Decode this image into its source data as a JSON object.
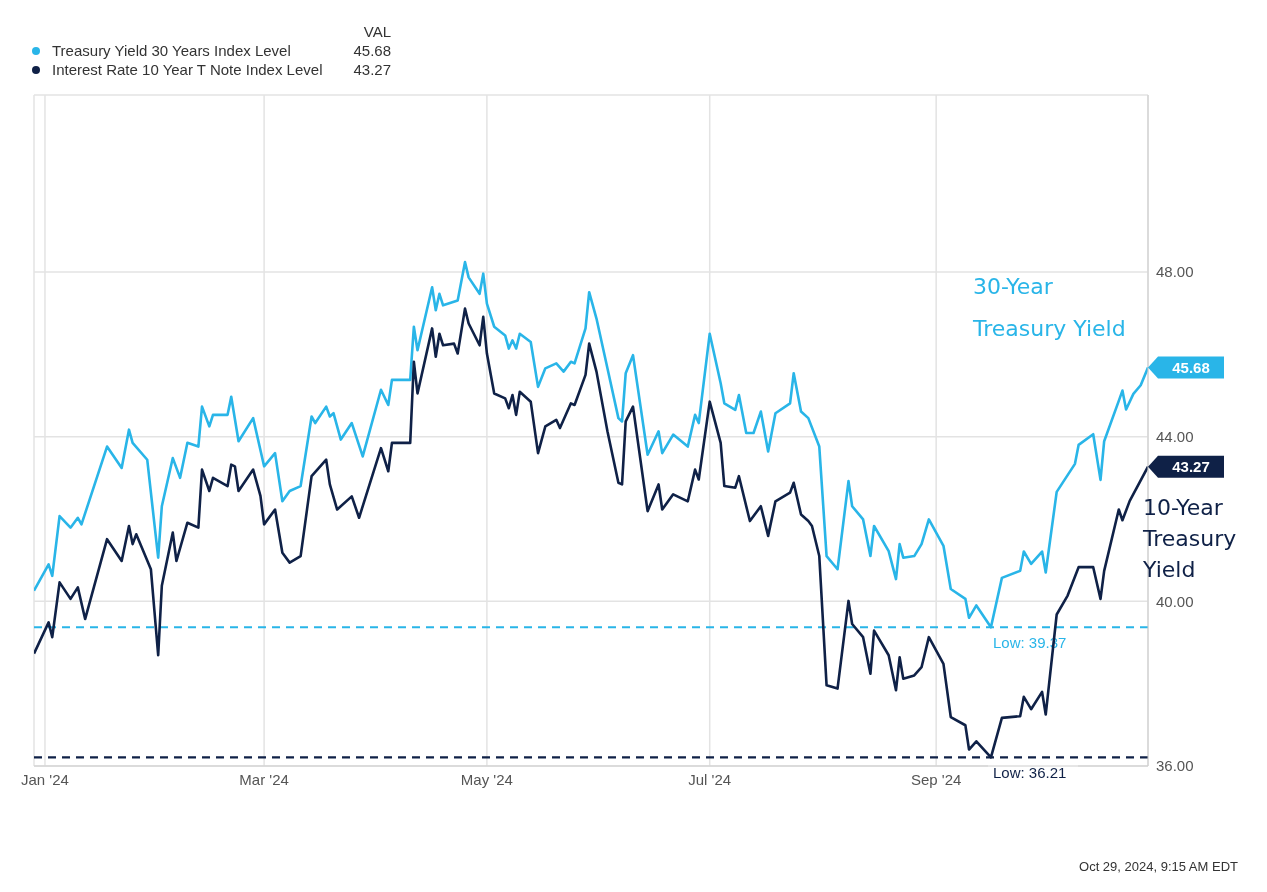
{
  "chart_data": {
    "type": "line",
    "legend_title": "VAL",
    "legend": "top left",
    "grid": true,
    "xlim": [
      "2023-12-29",
      "2024-10-29"
    ],
    "xticks": [
      {
        "value": "2024-01-01",
        "label": "Jan '24"
      },
      {
        "value": "2024-03-01",
        "label": "Mar '24"
      },
      {
        "value": "2024-05-01",
        "label": "May '24"
      },
      {
        "value": "2024-07-01",
        "label": "Jul '24"
      },
      {
        "value": "2024-09-01",
        "label": "Sep '24"
      }
    ],
    "ylim": [
      36,
      52.3
    ],
    "yticks": [
      {
        "value": 36,
        "label": "36.00"
      },
      {
        "value": 40,
        "label": "40.00"
      },
      {
        "value": 44,
        "label": "44.00"
      },
      {
        "value": 48,
        "label": "48.00"
      }
    ],
    "series": [
      {
        "name": "Treasury Yield 30 Years Index Level",
        "color": "#29b5e8",
        "x": [
          "2023-12-29",
          "2024-01-02",
          "2024-01-03",
          "2024-01-05",
          "2024-01-08",
          "2024-01-10",
          "2024-01-11",
          "2024-01-18",
          "2024-01-22",
          "2024-01-24",
          "2024-01-25",
          "2024-01-29",
          "2024-02-01",
          "2024-02-02",
          "2024-02-05",
          "2024-02-07",
          "2024-02-09",
          "2024-02-12",
          "2024-02-13",
          "2024-02-15",
          "2024-02-16",
          "2024-02-20",
          "2024-02-21",
          "2024-02-23",
          "2024-02-27",
          "2024-03-01",
          "2024-03-04",
          "2024-03-06",
          "2024-03-08",
          "2024-03-11",
          "2024-03-14",
          "2024-03-15",
          "2024-03-18",
          "2024-03-19",
          "2024-03-20",
          "2024-03-22",
          "2024-03-25",
          "2024-03-28",
          "2024-04-02",
          "2024-04-04",
          "2024-04-05",
          "2024-04-10",
          "2024-04-11",
          "2024-04-12",
          "2024-04-16",
          "2024-04-17",
          "2024-04-18",
          "2024-04-19",
          "2024-04-23",
          "2024-04-25",
          "2024-04-26",
          "2024-04-29",
          "2024-04-30",
          "2024-05-01",
          "2024-05-03",
          "2024-05-06",
          "2024-05-07",
          "2024-05-08",
          "2024-05-09",
          "2024-05-10",
          "2024-05-13",
          "2024-05-15",
          "2024-05-17",
          "2024-05-20",
          "2024-05-22",
          "2024-05-24",
          "2024-05-25",
          "2024-05-28",
          "2024-05-29",
          "2024-05-31",
          "2024-06-03",
          "2024-06-06",
          "2024-06-07",
          "2024-06-08",
          "2024-06-10",
          "2024-06-14",
          "2024-06-17",
          "2024-06-18",
          "2024-06-21",
          "2024-06-25",
          "2024-06-27",
          "2024-06-28",
          "2024-07-01",
          "2024-07-04",
          "2024-07-05",
          "2024-07-08",
          "2024-07-09",
          "2024-07-11",
          "2024-07-13",
          "2024-07-15",
          "2024-07-17",
          "2024-07-19",
          "2024-07-23",
          "2024-07-24",
          "2024-07-26",
          "2024-07-28",
          "2024-07-31",
          "2024-08-02",
          "2024-08-05",
          "2024-08-08",
          "2024-08-09",
          "2024-08-12",
          "2024-08-14",
          "2024-08-15",
          "2024-08-19",
          "2024-08-21",
          "2024-08-22",
          "2024-08-23",
          "2024-08-26",
          "2024-08-28",
          "2024-08-30",
          "2024-09-03",
          "2024-09-05",
          "2024-09-09",
          "2024-09-10",
          "2024-09-12",
          "2024-09-16",
          "2024-09-19",
          "2024-09-24",
          "2024-09-25",
          "2024-09-27",
          "2024-09-30",
          "2024-10-01",
          "2024-10-04",
          "2024-10-09",
          "2024-10-10",
          "2024-10-14",
          "2024-10-16",
          "2024-10-17",
          "2024-10-21",
          "2024-10-22",
          "2024-10-23",
          "2024-10-25",
          "2024-10-27",
          "2024-10-29"
        ],
        "values": [
          40.26,
          40.9,
          40.62,
          42.07,
          41.79,
          42.03,
          41.87,
          43.76,
          43.24,
          44.17,
          43.85,
          43.44,
          41.06,
          42.31,
          43.48,
          43.0,
          43.85,
          43.76,
          44.73,
          44.25,
          44.53,
          44.53,
          44.97,
          43.89,
          44.45,
          43.28,
          43.6,
          42.43,
          42.68,
          42.8,
          44.49,
          44.33,
          44.73,
          44.49,
          44.57,
          43.93,
          44.33,
          43.52,
          45.14,
          44.77,
          45.38,
          45.38,
          46.67,
          46.1,
          47.63,
          47.07,
          47.47,
          47.19,
          47.31,
          48.24,
          47.87,
          47.47,
          47.96,
          47.23,
          46.67,
          46.46,
          46.14,
          46.34,
          46.14,
          46.5,
          46.3,
          45.21,
          45.66,
          45.78,
          45.58,
          45.82,
          45.78,
          46.63,
          47.51,
          46.87,
          45.66,
          44.45,
          44.37,
          45.54,
          45.98,
          43.56,
          44.13,
          43.6,
          44.05,
          43.76,
          44.53,
          44.33,
          46.5,
          45.3,
          44.81,
          44.65,
          45.01,
          44.09,
          44.09,
          44.61,
          43.64,
          44.57,
          44.81,
          45.54,
          44.61,
          44.45,
          43.76,
          41.1,
          40.78,
          42.92,
          42.31,
          41.99,
          41.1,
          41.83,
          41.22,
          40.54,
          41.39,
          41.06,
          41.1,
          41.39,
          41.99,
          41.35,
          40.3,
          40.06,
          39.6,
          39.9,
          39.37,
          40.57,
          40.74,
          41.21,
          40.91,
          41.21,
          40.7,
          42.66,
          43.34,
          43.8,
          44.06,
          42.95,
          43.89,
          44.87,
          45.12,
          44.66,
          45.04,
          45.25,
          45.68
        ]
      },
      {
        "name": "Interest Rate 10 Year T Note Index Level",
        "color": "#0f2147",
        "x": [
          "2023-12-29",
          "2024-01-02",
          "2024-01-03",
          "2024-01-05",
          "2024-01-08",
          "2024-01-10",
          "2024-01-12",
          "2024-01-18",
          "2024-01-22",
          "2024-01-24",
          "2024-01-25",
          "2024-01-26",
          "2024-01-30",
          "2024-02-01",
          "2024-02-02",
          "2024-02-05",
          "2024-02-06",
          "2024-02-09",
          "2024-02-12",
          "2024-02-13",
          "2024-02-15",
          "2024-02-16",
          "2024-02-20",
          "2024-02-21",
          "2024-02-22",
          "2024-02-23",
          "2024-02-27",
          "2024-02-29",
          "2024-03-01",
          "2024-03-04",
          "2024-03-06",
          "2024-03-08",
          "2024-03-11",
          "2024-03-14",
          "2024-03-18",
          "2024-03-19",
          "2024-03-21",
          "2024-03-25",
          "2024-03-27",
          "2024-04-02",
          "2024-04-04",
          "2024-04-05",
          "2024-04-10",
          "2024-04-11",
          "2024-04-12",
          "2024-04-16",
          "2024-04-17",
          "2024-04-18",
          "2024-04-19",
          "2024-04-22",
          "2024-04-23",
          "2024-04-25",
          "2024-04-26",
          "2024-04-29",
          "2024-04-30",
          "2024-05-01",
          "2024-05-03",
          "2024-05-06",
          "2024-05-07",
          "2024-05-08",
          "2024-05-09",
          "2024-05-10",
          "2024-05-13",
          "2024-05-15",
          "2024-05-17",
          "2024-05-20",
          "2024-05-21",
          "2024-05-24",
          "2024-05-25",
          "2024-05-28",
          "2024-05-29",
          "2024-05-31",
          "2024-06-03",
          "2024-06-06",
          "2024-06-07",
          "2024-06-08",
          "2024-06-10",
          "2024-06-14",
          "2024-06-17",
          "2024-06-18",
          "2024-06-21",
          "2024-06-25",
          "2024-06-27",
          "2024-06-28",
          "2024-07-01",
          "2024-07-04",
          "2024-07-05",
          "2024-07-08",
          "2024-07-09",
          "2024-07-12",
          "2024-07-15",
          "2024-07-17",
          "2024-07-19",
          "2024-07-23",
          "2024-07-24",
          "2024-07-26",
          "2024-07-28",
          "2024-07-29",
          "2024-07-31",
          "2024-08-02",
          "2024-08-05",
          "2024-08-08",
          "2024-08-09",
          "2024-08-12",
          "2024-08-14",
          "2024-08-15",
          "2024-08-19",
          "2024-08-21",
          "2024-08-22",
          "2024-08-23",
          "2024-08-26",
          "2024-08-28",
          "2024-08-30",
          "2024-09-03",
          "2024-09-05",
          "2024-09-09",
          "2024-09-10",
          "2024-09-12",
          "2024-09-16",
          "2024-09-19",
          "2024-09-24",
          "2024-09-25",
          "2024-09-27",
          "2024-09-30",
          "2024-10-01",
          "2024-10-04",
          "2024-10-07",
          "2024-10-10",
          "2024-10-14",
          "2024-10-16",
          "2024-10-17",
          "2024-10-21",
          "2024-10-22",
          "2024-10-24",
          "2024-10-29"
        ],
        "values": [
          38.73,
          39.49,
          39.13,
          40.46,
          40.06,
          40.34,
          39.57,
          41.51,
          40.98,
          41.83,
          41.39,
          41.63,
          40.78,
          38.69,
          40.38,
          41.67,
          40.98,
          41.91,
          41.79,
          43.2,
          42.68,
          43.0,
          42.8,
          43.32,
          43.28,
          42.68,
          43.2,
          42.56,
          41.87,
          42.23,
          41.18,
          40.94,
          41.1,
          43.04,
          43.44,
          42.84,
          42.23,
          42.55,
          42.03,
          43.72,
          43.16,
          43.85,
          43.85,
          45.82,
          45.05,
          46.63,
          45.94,
          46.5,
          46.22,
          46.26,
          46.02,
          47.11,
          46.75,
          46.22,
          46.91,
          46.02,
          45.05,
          44.93,
          44.69,
          45.01,
          44.53,
          45.09,
          44.85,
          43.6,
          44.25,
          44.41,
          44.21,
          44.81,
          44.77,
          45.5,
          46.26,
          45.58,
          44.13,
          42.88,
          42.84,
          44.37,
          44.73,
          42.19,
          42.84,
          42.23,
          42.6,
          42.43,
          43.2,
          42.96,
          44.85,
          43.85,
          42.8,
          42.76,
          43.04,
          41.95,
          42.31,
          41.59,
          42.43,
          42.64,
          42.88,
          42.11,
          41.95,
          41.83,
          41.1,
          37.96,
          37.88,
          40.01,
          39.45,
          39.13,
          38.24,
          39.29,
          38.69,
          37.84,
          38.64,
          38.12,
          38.2,
          38.4,
          39.13,
          38.48,
          37.19,
          36.99,
          36.4,
          36.6,
          36.21,
          37.17,
          37.21,
          37.68,
          37.38,
          37.8,
          37.25,
          39.68,
          40.14,
          40.83,
          40.83,
          40.06,
          40.74,
          42.23,
          41.97,
          42.44,
          43.27
        ]
      }
    ],
    "ref_lines": [
      {
        "axis": "y",
        "value": 39.37,
        "label": "Low: 39.37",
        "color": "#29b5e8",
        "line_style": "dashed"
      },
      {
        "axis": "y",
        "value": 36.21,
        "label": "Low: 36.21",
        "color": "#0f2147",
        "line_style": "dashed"
      }
    ],
    "annotations": [
      {
        "text": "45.68",
        "x": "2024-10-29",
        "y": 45.68
      },
      {
        "text": "43.27",
        "x": "2024-10-29",
        "y": 43.27
      },
      "30-Year Treasury Yield",
      "10-Year Treasury Yield",
      "Oct 29, 2024, 9:15 AM EDT"
    ]
  }
}
